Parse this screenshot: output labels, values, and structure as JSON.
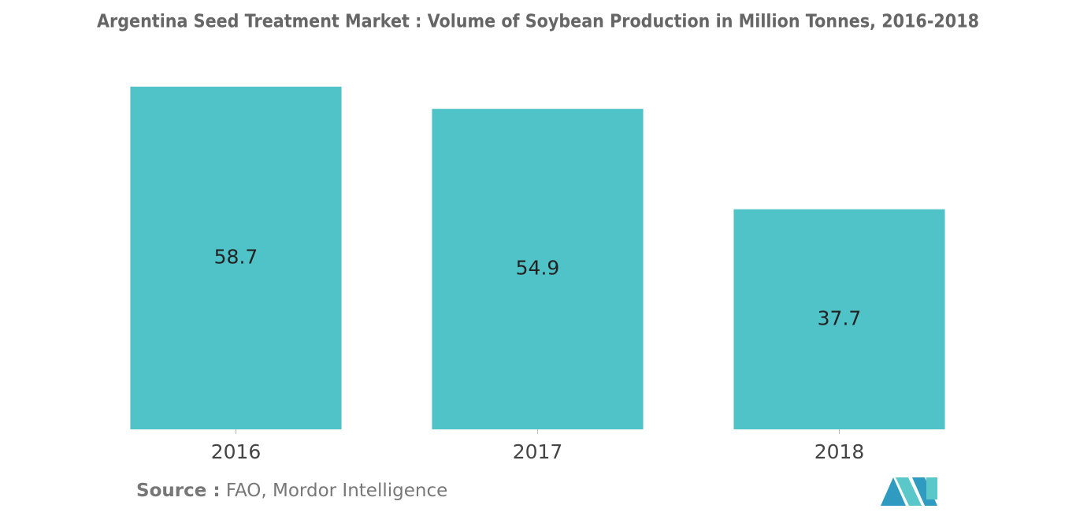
{
  "chart_data": {
    "type": "bar",
    "title": "Argentina Seed Treatment Market : Volume of Soybean Production in Million Tonnes, 2016-2018",
    "categories": [
      "2016",
      "2017",
      "2018"
    ],
    "values": [
      58.7,
      54.9,
      37.7
    ],
    "color": "#50c3c9",
    "source_label": "Source :",
    "source": "FAO, Mordor Intelligence"
  }
}
